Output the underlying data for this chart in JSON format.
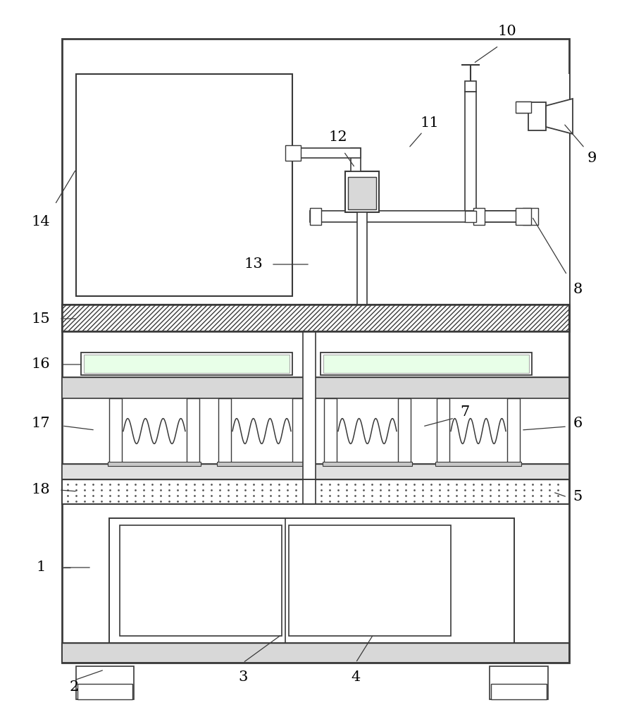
{
  "bg_color": "#ffffff",
  "line_color": "#3a3a3a",
  "fig_width": 8.83,
  "fig_height": 10.0
}
